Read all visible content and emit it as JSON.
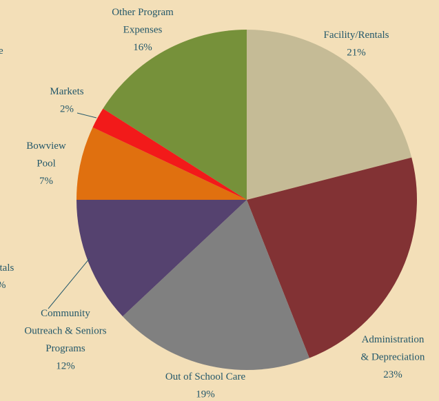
{
  "chart_data": {
    "type": "pie",
    "categories": [
      "Facility/Rentals",
      "Administration\n& Depreciation",
      "Out of School Care",
      "Community\nOutreach & Seniors\nPrograms",
      "Bowview\nPool",
      "Markets",
      "Other Program\nExpenses"
    ],
    "values": [
      21,
      23,
      19,
      12,
      7,
      2,
      16
    ],
    "value_labels": [
      "21%",
      "23%",
      "19%",
      "12%",
      "7%",
      "2%",
      "16%"
    ],
    "colors": [
      "#c5bb96",
      "#823234",
      "#808080",
      "#55426f",
      "#e0700f",
      "#f21a1a",
      "#76913a"
    ],
    "clipped_text": [
      "e",
      "ntals",
      "%"
    ]
  }
}
